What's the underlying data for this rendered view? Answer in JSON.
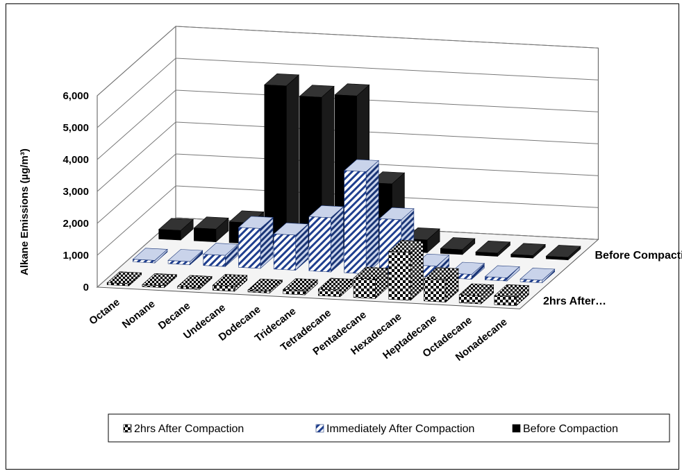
{
  "chart_data": {
    "type": "bar",
    "subtype": "3d-column",
    "ylabel": "Alkane Emissions (µg/m³)",
    "ylim": [
      0,
      6000
    ],
    "yticks": [
      "0",
      "1,000",
      "2,000",
      "3,000",
      "4,000",
      "5,000",
      "6,000"
    ],
    "grid": true,
    "legend_position": "bottom",
    "categories": [
      "Octane",
      "Nonane",
      "Decane",
      "Undecane",
      "Dodecane",
      "Tridecane",
      "Tetradecane",
      "Pentadecane",
      "Hexadecane",
      "Heptadecane",
      "Octadecane",
      "Nonadecane"
    ],
    "depth_axis_labels": [
      "Before Compaction",
      "2hrs After…"
    ],
    "series": [
      {
        "name": "2hrs After Compaction",
        "pattern": "checker",
        "color": "#000000",
        "values": [
          60,
          60,
          60,
          150,
          60,
          130,
          200,
          600,
          1500,
          700,
          250,
          280
        ]
      },
      {
        "name": "Immediately After Compaction",
        "pattern": "blue-diagonal",
        "color": "#1f3f8f",
        "values": [
          80,
          100,
          350,
          1250,
          1100,
          1700,
          3200,
          1750,
          350,
          150,
          100,
          80
        ]
      },
      {
        "name": "Before Compaction",
        "pattern": "solid",
        "color": "#000000",
        "values": [
          300,
          400,
          650,
          5000,
          4700,
          4800,
          2100,
          400,
          150,
          100,
          80,
          80
        ]
      }
    ]
  }
}
